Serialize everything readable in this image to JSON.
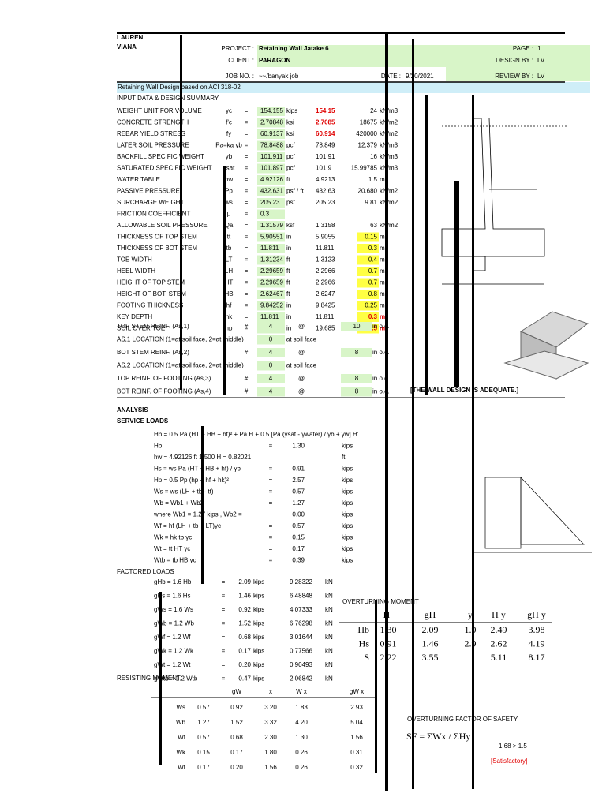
{
  "header": {
    "author": [
      "LAUREN",
      "VIANA"
    ],
    "project_label": "PROJECT :",
    "project": "Retaining Wall Jatake 6",
    "client_label": "CLIENT :",
    "client": "PARAGON",
    "job_label": "JOB NO. :",
    "job": "~~/banyak job",
    "date_label": "DATE :",
    "date": "9/20/2021",
    "page_label": "PAGE :",
    "page": "1",
    "design_label": "DESIGN BY :",
    "design": "LV",
    "review_label": "REVIEW BY :",
    "review": "LV",
    "title": "Retaining Wall Design based on ACI 318-02",
    "section": "INPUT DATA & DESIGN SUMMARY"
  },
  "input": {
    "rows": [
      [
        "WEIGHT UNIT FOR VOLUME",
        "γc",
        "=",
        "154.155",
        "kips",
        "154.15",
        "24",
        "kN/m3"
      ],
      [
        "CONCRETE STRENGTH",
        "f'c",
        "=",
        "2.70848",
        "ksi",
        "2.7085",
        "18675",
        "kN/m2"
      ],
      [
        "REBAR YIELD STRESS",
        "fy",
        "=",
        "60.9137",
        "ksi",
        "60.914",
        "420000",
        "kN/m2"
      ],
      [
        "LATER SOIL PRESSURE",
        "Pa=ka γb",
        "=",
        "78.8488",
        "pcf",
        "78.849",
        "12.379",
        "kN/m3"
      ],
      [
        "BACKFILL SPECIFIC WEIGHT",
        "γb",
        "=",
        "101.911",
        "pcf",
        "101.91",
        "16",
        "kN/m3"
      ],
      [
        "SATURATED SPECIFIC WEIGHT",
        "γsat",
        "=",
        "101.897",
        "pcf",
        "101.9",
        "15.99785",
        "kN/m3"
      ],
      [
        "WATER TABLE",
        "hw",
        "=",
        "4.92126",
        "ft",
        "4.9213",
        "1.5",
        "m"
      ],
      [
        "PASSIVE PRESSURE",
        "Pp",
        "=",
        "432.631",
        "psf / ft",
        "432.63",
        "20.680",
        "kN/m2"
      ],
      [
        "SURCHARGE WEIGHT",
        "ws",
        "=",
        "205.23",
        "psf",
        "205.23",
        "9.81",
        "kN/m2"
      ],
      [
        "FRICTION COEFFICIENT",
        "μ",
        "=",
        "0.3"
      ],
      [
        "ALLOWABLE SOIL PRESSURE",
        "Qa",
        "=",
        "1.31579",
        "ksf",
        "1.3158",
        "63",
        "kN/m2"
      ],
      [
        "THICKNESS OF TOP STEM",
        "tt",
        "=",
        "5.90551",
        "in",
        "5.9055",
        "0.15",
        "m"
      ],
      [
        "THICKNESS OF BOT STEM",
        "tb",
        "=",
        "11.811",
        "in",
        "11.811",
        "0.3",
        "m"
      ],
      [
        "TOE WIDTH",
        "LT",
        "=",
        "1.31234",
        "ft",
        "1.3123",
        "0.4",
        "m"
      ],
      [
        "HEEL WIDTH",
        "LH",
        "=",
        "2.29659",
        "ft",
        "2.2966",
        "0.7",
        "m"
      ],
      [
        "HEIGHT OF TOP STEM",
        "HT",
        "=",
        "2.29659",
        "ft",
        "2.2966",
        "0.7",
        "m"
      ],
      [
        "HEIGHT OF BOT. STEM",
        "HB",
        "=",
        "2.62467",
        "ft",
        "2.6247",
        "0.8",
        "m"
      ],
      [
        "FOOTING THICKNESS",
        "hf",
        "=",
        "9.84252",
        "in",
        "9.8425",
        "0.25",
        "m"
      ],
      [
        "KEY DEPTH",
        "hk",
        "=",
        "11.811",
        "in",
        "11.811",
        "0.3",
        "m"
      ],
      [
        "SOIL OVER TOE",
        "hp",
        "=",
        "19.685",
        "in",
        "19.685",
        "0.5",
        "m"
      ]
    ]
  },
  "rebar": {
    "rows": [
      [
        "TOP STEM REINF. (As,1)",
        "#",
        "4",
        "@",
        "10",
        "in o.c."
      ],
      [
        "AS,1 LOCATION (1=at soil face, 2=at middle)",
        "",
        "0",
        "at soil face"
      ],
      [
        "BOT STEM REINF. (As,2)",
        "#",
        "4",
        "@",
        "8",
        "in o.c."
      ],
      [
        "AS,2 LOCATION (1=at soil face, 2=at middle)",
        "",
        "0",
        "at soil face"
      ],
      [
        "TOP REINF. OF FOOTING (As,3)",
        "#",
        "4",
        "@",
        "8",
        "in o.c."
      ],
      [
        "BOT REINF. OF FOOTING (As,4)",
        "#",
        "4",
        "@",
        "8",
        "in o.c."
      ]
    ],
    "conclusion": "[THE WALL DESIGN IS ADEQUATE.]"
  },
  "analysis": {
    "title": "ANALYSIS",
    "service_title": "SERVICE LOADS",
    "rows": [
      [
        "Hb = 0.5 Pa (HT + HB + hf)² + Pa H + 0.5 [Pa (γsat - γwater) / γb + γw] H'",
        "",
        "",
        ""
      ],
      [
        "Hb",
        "=",
        "1.30",
        "kips"
      ],
      [
        "hw = 4.92126 ft   1.500   H = 0.82021",
        "",
        "",
        "ft"
      ],
      [
        "Hs = ws Pa (HT + HB + hf) / γb",
        "=",
        "0.91",
        "kips"
      ],
      [
        "Hp = 0.5 Pp (hp + hf + hk)²",
        "=",
        "2.57",
        "kips"
      ],
      [
        "Ws = ws (LH + tb - tt)",
        "=",
        "0.57",
        "kips"
      ],
      [
        "Wb = Wb1 + Wb2",
        "=",
        "1.27",
        "kips"
      ],
      [
        "where  Wb1 = 1.27 kips ,   Wb2 =",
        "",
        "0.00",
        "kips"
      ],
      [
        "Wf = hf (LH + tb + LT)γc",
        "=",
        "0.57",
        "kips"
      ],
      [
        "Wk = hk tb γc",
        "=",
        "0.15",
        "kips"
      ],
      [
        "Wt = tt HT γc",
        "=",
        "0.17",
        "kips"
      ],
      [
        "Wtb = tb HB γc",
        "=",
        "0.39",
        "kips"
      ]
    ]
  },
  "factored": {
    "title": "FACTORED LOADS",
    "rows": [
      [
        "gHb = 1.6 Hb",
        "=",
        "2.09",
        "kips",
        "9.28322",
        "kN"
      ],
      [
        "gHs = 1.6 Hs",
        "=",
        "1.46",
        "kips",
        "6.48848",
        "kN"
      ],
      [
        "gWs = 1.6 Ws",
        "=",
        "0.92",
        "kips",
        "4.07333",
        "kN"
      ],
      [
        "gWb = 1.2 Wb",
        "=",
        "1.52",
        "kips",
        "6.76298",
        "kN"
      ],
      [
        "gWf = 1.2 Wf",
        "=",
        "0.68",
        "kips",
        "3.01644",
        "kN"
      ],
      [
        "gWk = 1.2 Wk",
        "=",
        "0.17",
        "kips",
        "0.77566",
        "kN"
      ],
      [
        "gWt = 1.2 Wt",
        "=",
        "0.20",
        "kips",
        "0.90493",
        "kN"
      ],
      [
        "gWtb = 1.2 Wtb",
        "=",
        "0.47",
        "kips",
        "2.06842",
        "kN"
      ]
    ]
  },
  "overturning": {
    "title": "OVERTURNING MOMENT",
    "header": [
      "H",
      "gH",
      "y",
      "H y",
      "gH y"
    ],
    "rows": [
      [
        "Hb",
        "1.30",
        "2.09",
        "1.9",
        "2.49",
        "3.98"
      ],
      [
        "Hs",
        "0.91",
        "1.46",
        "2.9",
        "2.62",
        "4.19"
      ],
      [
        "S",
        "2.22",
        "3.55",
        "",
        "5.11",
        "8.17"
      ]
    ]
  },
  "resisting": {
    "title": "RESISTING MOMENT",
    "header": [
      "gW",
      "x",
      "W x",
      "gW x"
    ],
    "rows": [
      [
        "Ws",
        "0.57",
        "0.92",
        "3.20",
        "1.83",
        "2.93"
      ],
      [
        "Wb",
        "1.27",
        "1.52",
        "3.32",
        "4.20",
        "5.04"
      ],
      [
        "Wf",
        "0.57",
        "0.68",
        "2.30",
        "1.30",
        "1.56"
      ],
      [
        "Wk",
        "0.15",
        "0.17",
        "1.80",
        "0.26",
        "0.31"
      ],
      [
        "Wt",
        "0.17",
        "0.20",
        "1.56",
        "0.26",
        "0.32"
      ]
    ]
  },
  "safety": {
    "title": "OVERTURNING FACTOR OF SAFETY",
    "formula": "SF = ΣWx / ΣHy",
    "result": "1.68  >  1.5",
    "status": "[Satisfactory]"
  }
}
